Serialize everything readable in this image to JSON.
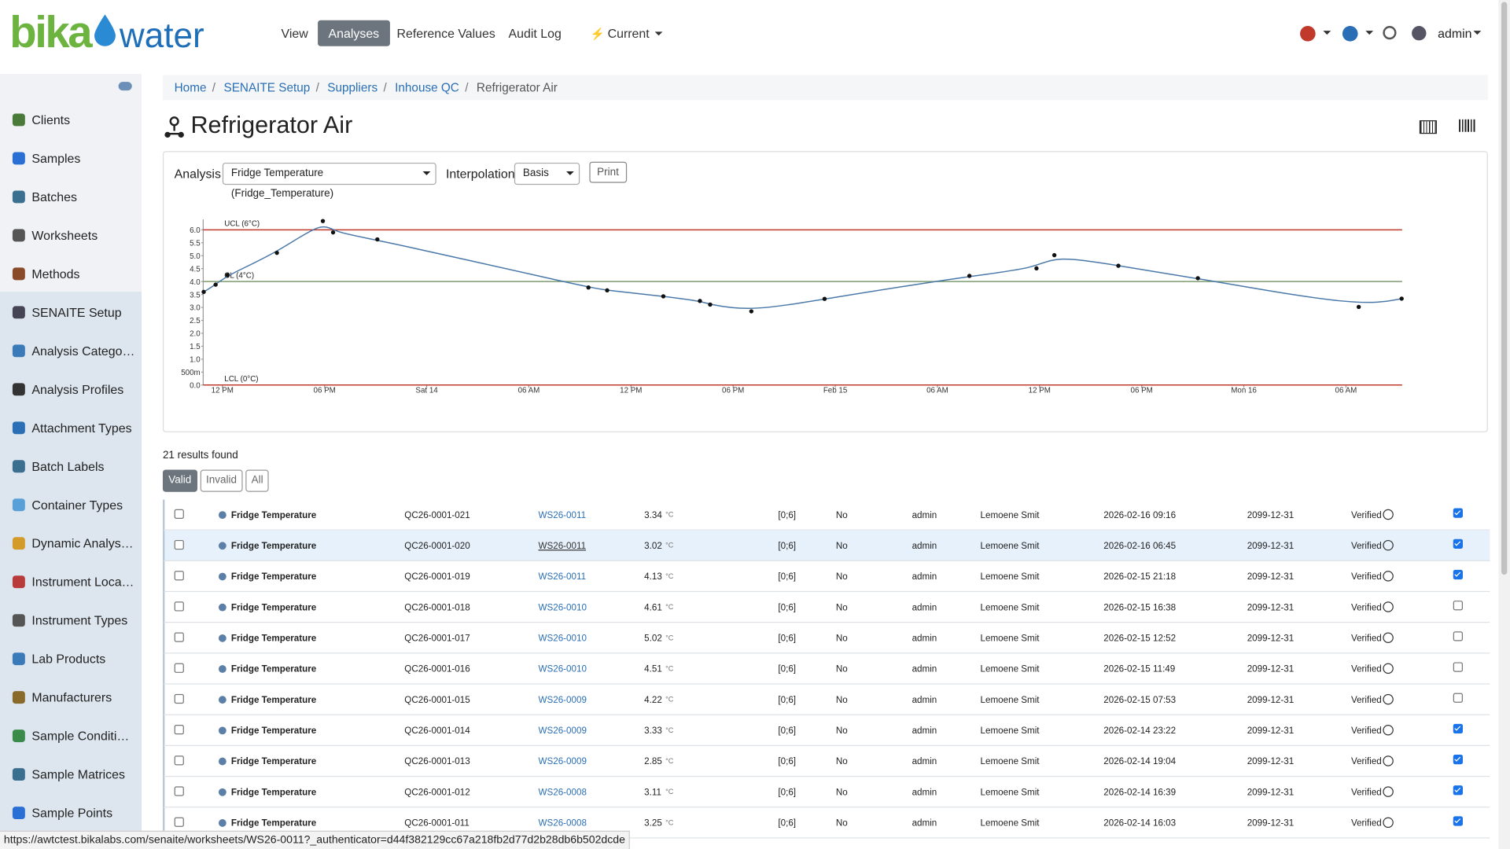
{
  "header": {
    "logo": [
      "bika",
      "water"
    ],
    "nav": [
      "View",
      "Analyses",
      "Reference Values",
      "Audit Log",
      "Current"
    ],
    "user": "admin"
  },
  "sidebar": [
    "Clients",
    "Samples",
    "Batches",
    "Worksheets",
    "Methods",
    "SENAITE Setup",
    "Analysis Categor…",
    "Analysis Profiles",
    "Attachment Types",
    "Batch Labels",
    "Container Types",
    "Dynamic Analysi…",
    "Instrument Locat…",
    "Instrument Types",
    "Lab Products",
    "Manufacturers",
    "Sample Conditions",
    "Sample Matrices",
    "Sample Points"
  ],
  "breadcrumbs": [
    "Home",
    "SENAITE Setup",
    "Suppliers",
    "Inhouse QC",
    "Refrigerator Air"
  ],
  "title": "Refrigerator Air",
  "controls": {
    "analysis_label": "Analysis",
    "analysis_value": "Fridge Temperature (Fridge_Temperature)",
    "interpolation_label": "Interpolation",
    "interpolation_value": "Basis",
    "print": "Print"
  },
  "chart": {
    "type": "line",
    "interpolation": "basis",
    "color": "#4a78a8",
    "x": [
      -1.1,
      -0.4,
      0.3,
      3.2,
      5.9,
      6.5,
      9.1,
      21.5,
      22.6,
      25.9,
      28.05,
      28.65,
      31.07,
      35.37,
      43.88,
      47.82,
      48.87,
      52.63,
      57.3,
      66.75,
      69.27
    ],
    "values": [
      3.6,
      3.88,
      4.25,
      5.11,
      6.34,
      5.9,
      5.63,
      3.77,
      3.66,
      3.43,
      3.25,
      3.11,
      2.85,
      3.33,
      4.22,
      4.51,
      5.02,
      4.61,
      4.13,
      3.02,
      3.34
    ],
    "xlim": [
      -1.13,
      69.3
    ],
    "xticks": [
      {
        "value": 0,
        "label": "12 PM"
      },
      {
        "value": 6,
        "label": "06 PM"
      },
      {
        "value": 12,
        "label": "Sat 14"
      },
      {
        "value": 18,
        "label": "06 AM"
      },
      {
        "value": 24,
        "label": "12 PM"
      },
      {
        "value": 30,
        "label": "06 PM"
      },
      {
        "value": 36,
        "label": "Feb 15"
      },
      {
        "value": 42,
        "label": "06 AM"
      },
      {
        "value": 48,
        "label": "12 PM"
      },
      {
        "value": 54,
        "label": "06 PM"
      },
      {
        "value": 60,
        "label": "Mon 16"
      },
      {
        "value": 66,
        "label": "06 AM"
      }
    ],
    "ylim": [
      0,
      6.4
    ],
    "yticks": [
      {
        "value": 0,
        "label": "0.0"
      },
      {
        "value": 0.5,
        "label": "500m"
      },
      {
        "value": 1,
        "label": "1.0"
      },
      1.5,
      {
        "value": 2,
        "label": "2.0"
      },
      2.5,
      {
        "value": 3,
        "label": "3.0"
      },
      3.5,
      {
        "value": 4,
        "label": "4.0"
      },
      4.5,
      {
        "value": 5,
        "label": "5.0"
      },
      5.5,
      {
        "value": 6,
        "label": "6.0"
      }
    ],
    "limits": [
      {
        "label": "UCL (6°C)",
        "value": 6,
        "color": "#c0392b"
      },
      {
        "label": "CL (4°C)",
        "value": 4,
        "color": "#7d9c6e"
      },
      {
        "label": "LCL (0°C)",
        "value": 0,
        "color": "#c0392b"
      }
    ]
  },
  "results": {
    "count": "21 results found",
    "filters": [
      "Valid",
      "Invalid",
      "All"
    ],
    "rows": [
      {
        "analysis": "Fridge Temperature",
        "id": "QC26-0001-021",
        "worksheet": "WS26-0011",
        "result": "3.34",
        "unit": "°C",
        "range": "[0;6]",
        "retest": "No",
        "submitter": "admin",
        "verifier": "Lemoene Smit",
        "captured": "2026-02-16 09:16",
        "due": "2099-12-31",
        "state": "Verified",
        "verified": true,
        "highlighted": false
      },
      {
        "analysis": "Fridge Temperature",
        "id": "QC26-0001-020",
        "worksheet": "WS26-0011",
        "result": "3.02",
        "unit": "°C",
        "range": "[0;6]",
        "retest": "No",
        "submitter": "admin",
        "verifier": "Lemoene Smit",
        "captured": "2026-02-16 06:45",
        "due": "2099-12-31",
        "state": "Verified",
        "verified": true,
        "highlighted": true
      },
      {
        "analysis": "Fridge Temperature",
        "id": "QC26-0001-019",
        "worksheet": "WS26-0011",
        "result": "4.13",
        "unit": "°C",
        "range": "[0;6]",
        "retest": "No",
        "submitter": "admin",
        "verifier": "Lemoene Smit",
        "captured": "2026-02-15 21:18",
        "due": "2099-12-31",
        "state": "Verified",
        "verified": true,
        "highlighted": false
      },
      {
        "analysis": "Fridge Temperature",
        "id": "QC26-0001-018",
        "worksheet": "WS26-0010",
        "result": "4.61",
        "unit": "°C",
        "range": "[0;6]",
        "retest": "No",
        "submitter": "admin",
        "verifier": "Lemoene Smit",
        "captured": "2026-02-15 16:38",
        "due": "2099-12-31",
        "state": "Verified",
        "verified": false,
        "highlighted": false
      },
      {
        "analysis": "Fridge Temperature",
        "id": "QC26-0001-017",
        "worksheet": "WS26-0010",
        "result": "5.02",
        "unit": "°C",
        "range": "[0;6]",
        "retest": "No",
        "submitter": "admin",
        "verifier": "Lemoene Smit",
        "captured": "2026-02-15 12:52",
        "due": "2099-12-31",
        "state": "Verified",
        "verified": false,
        "highlighted": false
      },
      {
        "analysis": "Fridge Temperature",
        "id": "QC26-0001-016",
        "worksheet": "WS26-0010",
        "result": "4.51",
        "unit": "°C",
        "range": "[0;6]",
        "retest": "No",
        "submitter": "admin",
        "verifier": "Lemoene Smit",
        "captured": "2026-02-15 11:49",
        "due": "2099-12-31",
        "state": "Verified",
        "verified": false,
        "highlighted": false
      },
      {
        "analysis": "Fridge Temperature",
        "id": "QC26-0001-015",
        "worksheet": "WS26-0009",
        "result": "4.22",
        "unit": "°C",
        "range": "[0;6]",
        "retest": "No",
        "submitter": "admin",
        "verifier": "Lemoene Smit",
        "captured": "2026-02-15 07:53",
        "due": "2099-12-31",
        "state": "Verified",
        "verified": false,
        "highlighted": false
      },
      {
        "analysis": "Fridge Temperature",
        "id": "QC26-0001-014",
        "worksheet": "WS26-0009",
        "result": "3.33",
        "unit": "°C",
        "range": "[0;6]",
        "retest": "No",
        "submitter": "admin",
        "verifier": "Lemoene Smit",
        "captured": "2026-02-14 23:22",
        "due": "2099-12-31",
        "state": "Verified",
        "verified": true,
        "highlighted": false
      },
      {
        "analysis": "Fridge Temperature",
        "id": "QC26-0001-013",
        "worksheet": "WS26-0009",
        "result": "2.85",
        "unit": "°C",
        "range": "[0;6]",
        "retest": "No",
        "submitter": "admin",
        "verifier": "Lemoene Smit",
        "captured": "2026-02-14 19:04",
        "due": "2099-12-31",
        "state": "Verified",
        "verified": true,
        "highlighted": false
      },
      {
        "analysis": "Fridge Temperature",
        "id": "QC26-0001-012",
        "worksheet": "WS26-0008",
        "result": "3.11",
        "unit": "°C",
        "range": "[0;6]",
        "retest": "No",
        "submitter": "admin",
        "verifier": "Lemoene Smit",
        "captured": "2026-02-14 16:39",
        "due": "2099-12-31",
        "state": "Verified",
        "verified": true,
        "highlighted": false
      },
      {
        "analysis": "Fridge Temperature",
        "id": "QC26-0001-011",
        "worksheet": "WS26-0008",
        "result": "3.25",
        "unit": "°C",
        "range": "[0;6]",
        "retest": "No",
        "submitter": "admin",
        "verifier": "Lemoene Smit",
        "captured": "2026-02-14 16:03",
        "due": "2099-12-31",
        "state": "Verified",
        "verified": true,
        "highlighted": false
      }
    ]
  },
  "status_url": "https://awtctest.bikalabs.com/senaite/worksheets/WS26-0011?_authenticator=d44f382129cc67a218fb2d77d2b28db6b502dcde"
}
